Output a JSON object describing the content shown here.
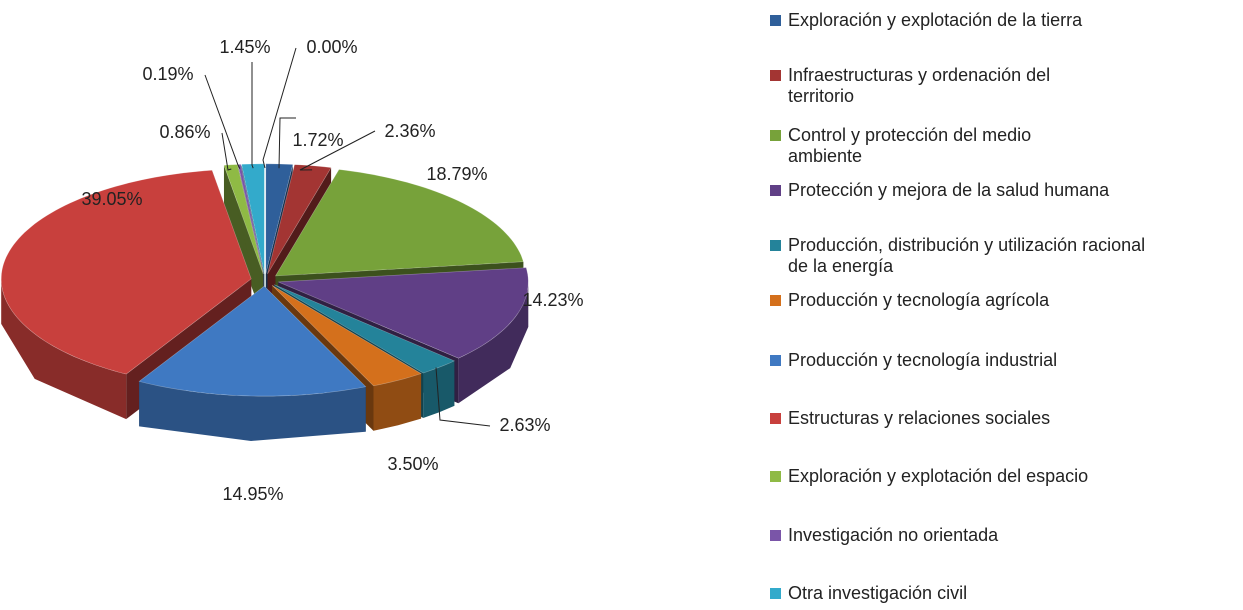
{
  "chart_data": {
    "type": "pie3d",
    "categories": [
      "Exploración y explotación de la tierra",
      "Infraestructuras y ordenación del territorio",
      "Control y protección del medio ambiente",
      "Protección y mejora de la salud humana",
      "Producción, distribución y utilización racional de la energía",
      "Producción y tecnología agrícola",
      "Producción y tecnología industrial",
      "Estructuras y relaciones sociales",
      "Exploración y explotación del espacio",
      "Investigación no orientada",
      "Otra investigación civil",
      null
    ],
    "values": [
      1.72,
      2.36,
      18.79,
      14.23,
      2.63,
      3.5,
      14.95,
      39.05,
      0.86,
      0.19,
      1.45,
      0
    ],
    "value_labels": [
      "1.72%",
      "2.36%",
      "18.79%",
      "14.23%",
      "2.63%",
      "3.50%",
      "14.95%",
      "39.05%",
      "0.86%",
      "0.19%",
      "1.45%",
      "0.00%"
    ],
    "colors": [
      "#2f5f9a",
      "#a33533",
      "#77a23a",
      "#603f86",
      "#24839a",
      "#d4701c",
      "#3f79c2",
      "#c8403d",
      "#8fba45",
      "#7a55a8",
      "#33aacb",
      "#8c8c8c"
    ],
    "legend": "right"
  }
}
